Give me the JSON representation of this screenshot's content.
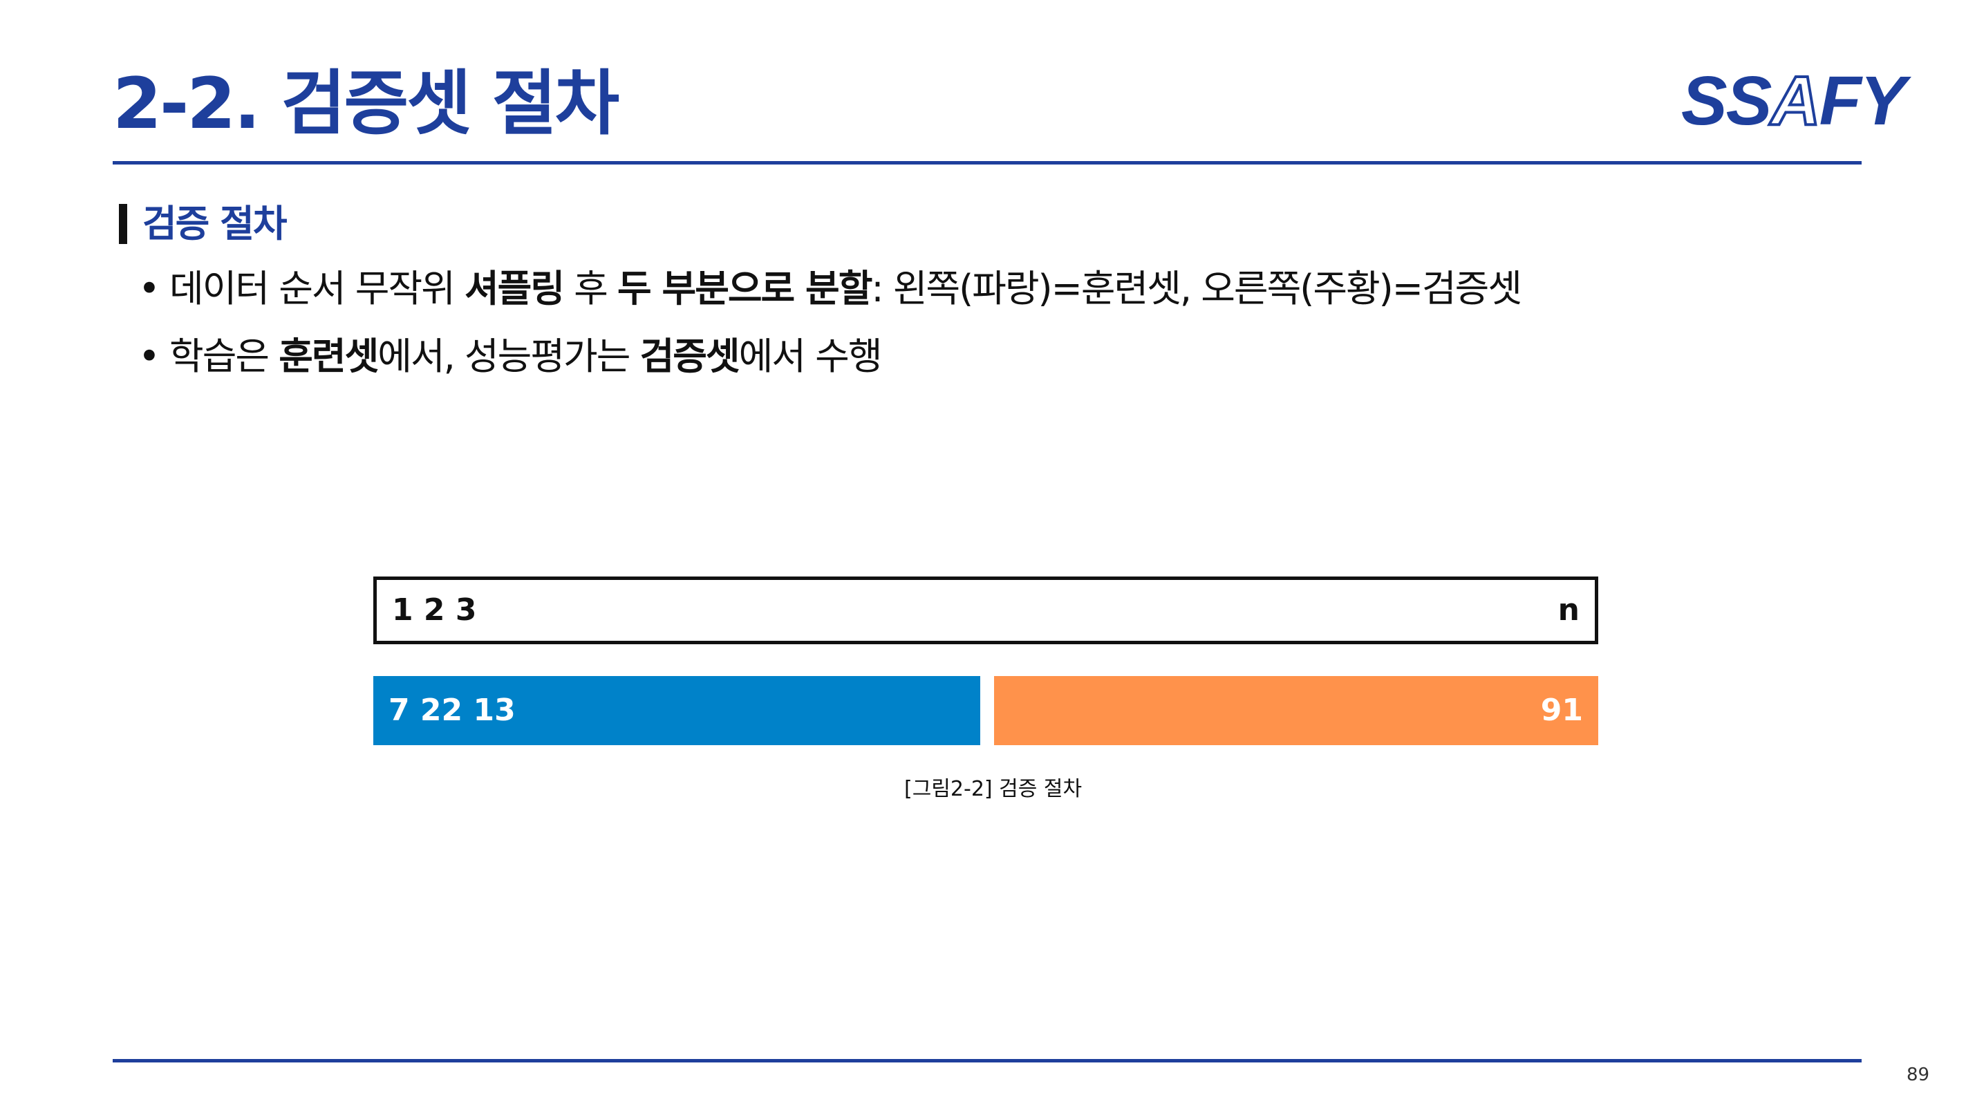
{
  "slide": {
    "title": "2-2. 검증셋 절차",
    "logo": {
      "part1": "SS",
      "part2": "A",
      "part3": "FY"
    },
    "section_heading": "검증 절차",
    "bullets": [
      {
        "bullet": "•",
        "t1": "데이터 순서 무작위 ",
        "b1": "셔플링",
        "t2": " 후 ",
        "b2": "두 부분으로 분할",
        "t3": ": 왼쪽(파랑)=훈련셋, 오른쪽(주황)=검증셋"
      },
      {
        "bullet": "•",
        "t1": "학습은 ",
        "b1": "훈련셋",
        "t2": "에서, 성능평가는 ",
        "b2": "검증셋",
        "t3": "에서 수행"
      }
    ],
    "page_number": "89"
  },
  "figure": {
    "original_row": {
      "left_label": "1 2 3",
      "right_label": "n"
    },
    "train_row": {
      "label": "7 22 13"
    },
    "validation_row": {
      "label": "91"
    },
    "caption": "[그림2-2] 검증 절차"
  },
  "colors": {
    "accent": "#1e3f9c",
    "train": "#0082c9",
    "validation": "#ff924b",
    "text": "#111111"
  }
}
